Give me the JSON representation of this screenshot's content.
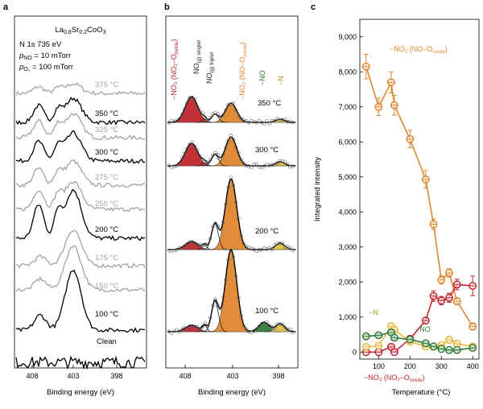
{
  "panel_a": {
    "label": "a",
    "sample": {
      "base": "La",
      "sub1": "0.8",
      "mid": "Sr",
      "sub2": "0.2",
      "tail": "CoO",
      "sub3": "3"
    },
    "line1": "N 1s 735 eV",
    "line2": {
      "p": "p",
      "sub": "NO",
      "rest": " = 10 mTorr"
    },
    "line3": {
      "p": "p",
      "sub": "O₂",
      "rest": " = 100 mTorr"
    },
    "spectra": [
      {
        "label": "375 °C",
        "color": "#a3a3a3"
      },
      {
        "label": "350 °C",
        "color": "#000000"
      },
      {
        "label": "325 °C",
        "color": "#a3a3a3"
      },
      {
        "label": "300 °C",
        "color": "#000000"
      },
      {
        "label": "275 °C",
        "color": "#a3a3a3"
      },
      {
        "label": "250 °C",
        "color": "#a3a3a3"
      },
      {
        "label": "200 °C",
        "color": "#000000"
      },
      {
        "label": "175 °C",
        "color": "#a3a3a3"
      },
      {
        "label": "150 °C",
        "color": "#a3a3a3"
      },
      {
        "label": "100 °C",
        "color": "#000000"
      },
      {
        "label": "Clean",
        "color": "#000000"
      }
    ],
    "xticks": [
      "408",
      "403",
      "398"
    ],
    "xlabel": "Binding energy (eV)"
  },
  "panel_b": {
    "label": "b",
    "species": [
      {
        "text": "−NO₃ (NO₂–O",
        "sub": "oxide",
        "tail": ")",
        "color": "#c0262d"
      },
      {
        "text": "NO",
        "sub": "(g) singlet",
        "tail": "",
        "color": "#222222"
      },
      {
        "text": "NO",
        "sub": "(g) triplet",
        "tail": "",
        "color": "#222222"
      },
      {
        "text": "−NO₂ (NO–O",
        "sub": "oxide",
        "tail": ")",
        "color": "#e0862e"
      },
      {
        "text": "−NO",
        "sub": "",
        "tail": "",
        "color": "#2f7a3a"
      },
      {
        "text": "−N",
        "sub": "",
        "tail": "",
        "color": "#b8951a"
      }
    ],
    "temps": [
      "350 °C",
      "300 °C",
      "200 °C",
      "100 °C"
    ],
    "xticks": [
      "408",
      "403",
      "398"
    ],
    "xlabel": "Binding energy (eV)"
  },
  "panel_c": {
    "label": "c",
    "xlabel": "Temperature (°C)",
    "ylabel": "Integrated intensity",
    "annotations": {
      "no2": {
        "text": "−NO₂ (NO–O",
        "sub": "oxide",
        "tail": ")"
      },
      "no3": {
        "text": "−NO₃ (NO₂–O",
        "sub": "oxide",
        "tail": ")"
      },
      "n": "−N",
      "no": "−NO"
    }
  },
  "chart_data": [
    {
      "type": "line",
      "panel": "c",
      "xlabel": "Temperature (°C)",
      "ylabel": "Integrated intensity",
      "xlim": [
        40,
        420
      ],
      "ylim": [
        -200,
        9500
      ],
      "xticks": [
        100,
        200,
        300,
        400
      ],
      "yticks": [
        0,
        1000,
        2000,
        3000,
        4000,
        5000,
        6000,
        7000,
        8000,
        9000
      ],
      "series": [
        {
          "name": "−NO₂ (NO–O_oxide)",
          "color": "#e0862e",
          "x": [
            60,
            100,
            140,
            150,
            200,
            250,
            275,
            300,
            325,
            350,
            400
          ],
          "y": [
            8150,
            7000,
            7700,
            7050,
            6080,
            4930,
            3650,
            2060,
            2260,
            1450,
            730
          ],
          "err": [
            350,
            250,
            300,
            280,
            250,
            250,
            150,
            120,
            120,
            100,
            100
          ]
        },
        {
          "name": "−NO₃ (NO₂–O_oxide)",
          "color": "#c0262d",
          "x": [
            60,
            100,
            140,
            150,
            200,
            250,
            275,
            300,
            325,
            350,
            400
          ],
          "y": [
            0,
            0,
            150,
            0,
            380,
            900,
            1600,
            1470,
            1550,
            1930,
            1890
          ],
          "err": [
            0,
            0,
            60,
            0,
            80,
            80,
            150,
            120,
            130,
            150,
            280
          ]
        },
        {
          "name": "−N",
          "color": "#e8b83a",
          "x": [
            60,
            100,
            140,
            150,
            200,
            250,
            275,
            300,
            325,
            350,
            400
          ],
          "y": [
            150,
            180,
            740,
            640,
            300,
            160,
            150,
            200,
            350,
            240,
            160
          ],
          "err": [
            50,
            50,
            60,
            60,
            50,
            40,
            40,
            40,
            50,
            40,
            40
          ]
        },
        {
          "name": "−NO",
          "color": "#2f7a3a",
          "x": [
            60,
            100,
            140,
            150,
            200,
            250,
            275,
            300,
            325,
            350,
            400
          ],
          "y": [
            450,
            480,
            560,
            410,
            360,
            250,
            160,
            90,
            60,
            60,
            120
          ],
          "err": [
            50,
            50,
            60,
            50,
            40,
            40,
            30,
            30,
            30,
            30,
            30
          ]
        }
      ]
    },
    {
      "type": "line",
      "panel": "a",
      "title": "N 1s 735 eV",
      "xlabel": "Binding energy (eV)",
      "xticks": [
        408,
        403,
        398
      ],
      "series_names": [
        "375 °C",
        "350 °C",
        "325 °C",
        "300 °C",
        "275 °C",
        "250 °C",
        "200 °C",
        "175 °C",
        "150 °C",
        "100 °C",
        "Clean"
      ]
    },
    {
      "type": "area",
      "panel": "b",
      "xlabel": "Binding energy (eV)",
      "xticks": [
        408,
        403,
        398
      ],
      "series_names": [
        "350 °C",
        "300 °C",
        "200 °C",
        "100 °C"
      ]
    }
  ]
}
